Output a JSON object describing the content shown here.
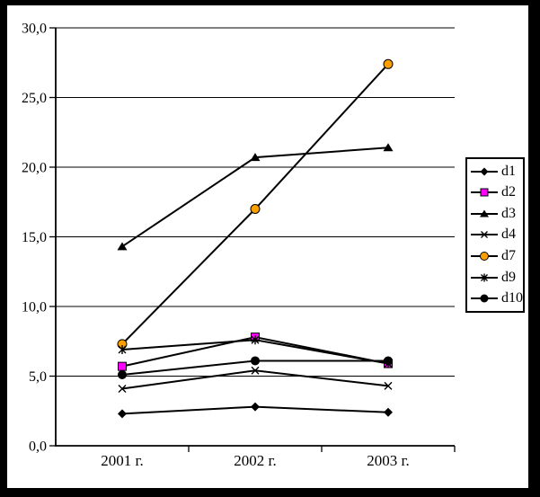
{
  "window": {
    "background_color": "#ffffff",
    "frame_color": "#000000"
  },
  "chart_data": {
    "type": "line",
    "title": "",
    "xlabel": "",
    "ylabel": "",
    "categories": [
      "2001 г.",
      "2002 г.",
      "2003 г."
    ],
    "series": [
      {
        "name": "d1",
        "marker": "diamond",
        "line_color": "#000000",
        "marker_fill": "#000000",
        "values": [
          2.3,
          2.8,
          2.4
        ]
      },
      {
        "name": "d2",
        "marker": "square",
        "line_color": "#000000",
        "marker_fill": "#FF00FF",
        "values": [
          5.7,
          7.8,
          5.9
        ]
      },
      {
        "name": "d3",
        "marker": "triangle",
        "line_color": "#000000",
        "marker_fill": "#000000",
        "values": [
          14.3,
          20.7,
          21.4
        ]
      },
      {
        "name": "d4",
        "marker": "x",
        "line_color": "#000000",
        "marker_fill": "none",
        "values": [
          4.1,
          5.4,
          4.3
        ]
      },
      {
        "name": "d7",
        "marker": "circle",
        "line_color": "#000000",
        "marker_fill": "#FFA000",
        "values": [
          7.3,
          17.0,
          27.4
        ]
      },
      {
        "name": "d9",
        "marker": "asterisk",
        "line_color": "#000000",
        "marker_fill": "none",
        "values": [
          6.9,
          7.6,
          5.9
        ]
      },
      {
        "name": "d10",
        "marker": "dot",
        "line_color": "#000000",
        "marker_fill": "#000000",
        "values": [
          5.1,
          6.1,
          6.1
        ]
      }
    ],
    "ylim": [
      0,
      30
    ],
    "ytick_step": 5,
    "ytick_labels": [
      "0,0",
      "5,0",
      "10,0",
      "15,0",
      "20,0",
      "25,0",
      "30,0"
    ],
    "grid": true,
    "gridline_color": "#000000",
    "legend_position": "right",
    "legend_labels": [
      "d1",
      "d2",
      "d3",
      "d4",
      "d7",
      "d9",
      "d10"
    ]
  }
}
